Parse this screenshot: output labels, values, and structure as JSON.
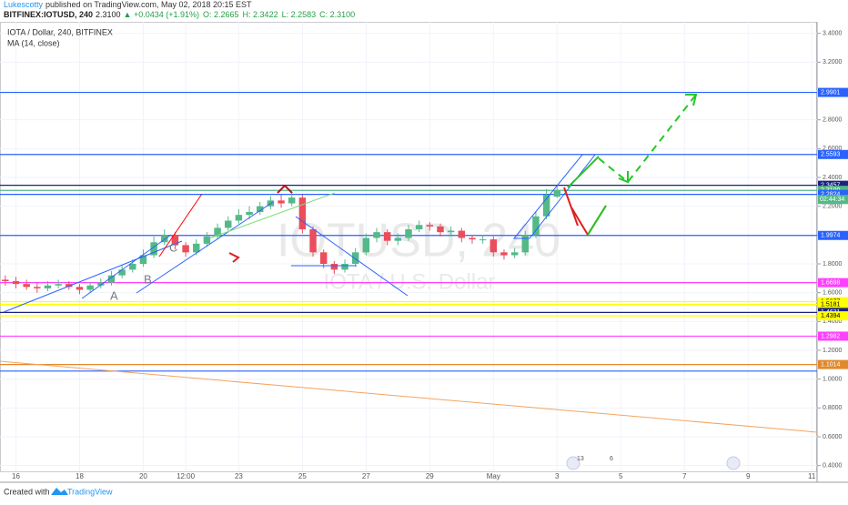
{
  "header": {
    "author": "Lukescotty",
    "published": "published on TradingView.com, May 02, 2018 20:15 EST",
    "symbol": "BITFINEX:IOTUSD, 240",
    "price": "2.3100",
    "change": "▲ +0.0434 (+1.91%)",
    "ohlc": [
      "O: 2.2665",
      "H: 2.3422",
      "L: 2.2583",
      "C: 2.3100"
    ]
  },
  "legend": [
    "IOTA / Dollar, 240, BITFINEX",
    "MA (14, close)"
  ],
  "watermark": [
    "IOTUSD, 240",
    "IOTA / U.S. Dollar"
  ],
  "annotations": [
    "A",
    "B",
    "C"
  ],
  "events": [
    "13",
    "6"
  ],
  "footer": {
    "created": "Created with",
    "brand": "TradingView"
  },
  "chart_data": {
    "type": "candlestick",
    "up_color": "#53b987",
    "down_color": "#eb4d5c",
    "categories": [
      null,
      "16",
      null,
      null,
      null,
      null,
      null,
      "18",
      null,
      null,
      null,
      null,
      null,
      "20",
      null,
      null,
      null,
      "12:00",
      null,
      null,
      null,
      null,
      "23",
      null,
      null,
      null,
      null,
      null,
      "25",
      null,
      null,
      null,
      null,
      null,
      "27",
      null,
      null,
      null,
      null,
      null,
      "29",
      null,
      null,
      null,
      null,
      null,
      "May",
      null,
      null,
      null,
      null,
      null,
      "3",
      null,
      null,
      null,
      null,
      null,
      "5",
      null,
      null,
      null,
      null,
      null,
      "7",
      null,
      null,
      null,
      null,
      null,
      "9",
      null,
      null,
      null,
      null,
      null,
      "11"
    ],
    "open": [
      1.69,
      1.68,
      1.66,
      1.64,
      1.63,
      1.65,
      1.66,
      1.64,
      1.62,
      1.65,
      1.67,
      1.72,
      1.76,
      1.8,
      1.86,
      1.95,
      2.0,
      1.93,
      1.88,
      1.94,
      1.99,
      2.05,
      2.1,
      2.14,
      2.16,
      2.2,
      2.24,
      2.22,
      2.26,
      2.04,
      1.88,
      1.8,
      1.76,
      1.8,
      1.88,
      1.98,
      2.02,
      1.96,
      1.98,
      2.04,
      2.07,
      2.06,
      2.02,
      2.03,
      1.98,
      1.97,
      1.97,
      1.88,
      1.86,
      1.88,
      2.0,
      2.13,
      2.2665,
      null,
      null,
      null,
      null,
      null,
      null,
      null,
      null,
      null,
      null,
      null,
      null,
      null,
      null,
      null,
      null,
      null,
      null,
      null,
      null,
      null,
      null,
      null,
      null
    ],
    "high": [
      1.72,
      1.71,
      1.69,
      1.67,
      1.68,
      1.69,
      1.68,
      1.66,
      1.67,
      1.7,
      1.75,
      1.79,
      1.83,
      1.9,
      1.99,
      2.04,
      2.02,
      1.95,
      1.97,
      2.02,
      2.08,
      2.13,
      2.18,
      2.2,
      2.23,
      2.27,
      2.28,
      2.3,
      2.28,
      2.06,
      1.9,
      1.82,
      1.83,
      1.91,
      2.01,
      2.05,
      2.04,
      2.01,
      2.07,
      2.1,
      2.09,
      2.08,
      2.06,
      2.05,
      2.0,
      2.0,
      1.99,
      1.9,
      1.91,
      2.03,
      2.16,
      2.32,
      2.3422,
      null,
      null,
      null,
      null,
      null,
      null,
      null,
      null,
      null,
      null,
      null,
      null,
      null,
      null,
      null,
      null,
      null,
      null,
      null,
      null,
      null,
      null,
      null,
      null
    ],
    "low": [
      1.65,
      1.63,
      1.62,
      1.6,
      1.61,
      1.63,
      1.62,
      1.59,
      1.6,
      1.63,
      1.65,
      1.7,
      1.74,
      1.78,
      1.84,
      1.93,
      1.9,
      1.85,
      1.86,
      1.92,
      1.97,
      2.03,
      2.08,
      2.11,
      2.14,
      2.18,
      2.19,
      2.2,
      2.01,
      1.85,
      1.77,
      1.73,
      1.74,
      1.78,
      1.86,
      1.95,
      1.93,
      1.93,
      1.96,
      2.02,
      2.03,
      1.99,
      1.99,
      1.95,
      1.94,
      1.94,
      1.85,
      1.83,
      1.84,
      1.86,
      1.98,
      2.11,
      2.2583,
      null,
      null,
      null,
      null,
      null,
      null,
      null,
      null,
      null,
      null,
      null,
      null,
      null,
      null,
      null,
      null,
      null,
      null,
      null,
      null,
      null,
      null,
      null,
      null
    ],
    "close": [
      1.68,
      1.66,
      1.64,
      1.63,
      1.65,
      1.66,
      1.64,
      1.62,
      1.65,
      1.67,
      1.72,
      1.76,
      1.8,
      1.86,
      1.95,
      2.0,
      1.93,
      1.88,
      1.94,
      1.99,
      2.05,
      2.1,
      2.14,
      2.16,
      2.2,
      2.24,
      2.22,
      2.26,
      2.04,
      1.88,
      1.8,
      1.76,
      1.8,
      1.88,
      1.98,
      2.02,
      1.96,
      1.98,
      2.04,
      2.07,
      2.06,
      2.02,
      2.03,
      1.98,
      1.97,
      1.97,
      1.88,
      1.86,
      1.88,
      2.0,
      2.13,
      2.28,
      2.31,
      null,
      null,
      null,
      null,
      null,
      null,
      null,
      null,
      null,
      null,
      null,
      null,
      null,
      null,
      null,
      null,
      null,
      null,
      null,
      null,
      null,
      null,
      null,
      null
    ],
    "ylim": [
      0.36,
      3.48
    ],
    "yticks": [
      {
        "value": 3.4,
        "label": "3.4000"
      },
      {
        "value": 3.2,
        "label": "3.2000"
      },
      {
        "value": 3.0,
        "label": "3.0000"
      },
      {
        "value": 2.8,
        "label": "2.8000"
      },
      {
        "value": 2.6,
        "label": "2.6000"
      },
      {
        "value": 2.4,
        "label": "2.4000"
      },
      {
        "value": 2.2,
        "label": "2.2000"
      },
      {
        "value": 2.0,
        "label": "2.0000"
      },
      {
        "value": 1.8,
        "label": "1.8000"
      },
      {
        "value": 1.6,
        "label": "1.6000"
      },
      {
        "value": 1.4,
        "label": "1.4000"
      },
      {
        "value": 1.2,
        "label": "1.2000"
      },
      {
        "value": 1.0,
        "label": "1.0000"
      },
      {
        "value": 0.8,
        "label": "0.8000"
      },
      {
        "value": 0.6,
        "label": "0.6000"
      },
      {
        "value": 0.4,
        "label": "0.4000"
      }
    ],
    "levels": [
      {
        "value": 2.9901,
        "label": "2.9901",
        "color": "#2962ff"
      },
      {
        "value": 2.5593,
        "label": "2.5593",
        "color": "#2962ff"
      },
      {
        "value": 2.3457,
        "label": "2.3457",
        "color": "#1a237e"
      },
      {
        "value": 2.31,
        "label": "2.3100",
        "color": "#53b987"
      },
      {
        "value": 2.2824,
        "label": "2.2824",
        "color": "#2962ff"
      },
      {
        "value": 1.9974,
        "label": "1.9974",
        "color": "#2962ff"
      },
      {
        "value": 1.6698,
        "label": "1.6698",
        "color": "#ff40ff"
      },
      {
        "value": 1.5377,
        "label": "1.5377",
        "color": "#ffff00"
      },
      {
        "value": 1.5181,
        "label": "1.5181",
        "color": "#ffff00"
      },
      {
        "value": 1.4631,
        "label": "1.4631",
        "color": "#1a237e"
      },
      {
        "value": 1.4394,
        "label": "1.4394",
        "color": "#ffff00"
      },
      {
        "value": 1.2982,
        "label": "1.2982",
        "color": "#ff40ff"
      },
      {
        "value": 1.1014,
        "label": "1.1014",
        "color": "#e08a2c"
      },
      {
        "value": 1.056,
        "color": "#2962ff"
      }
    ],
    "countdown": "02:44:34",
    "grid": true
  }
}
